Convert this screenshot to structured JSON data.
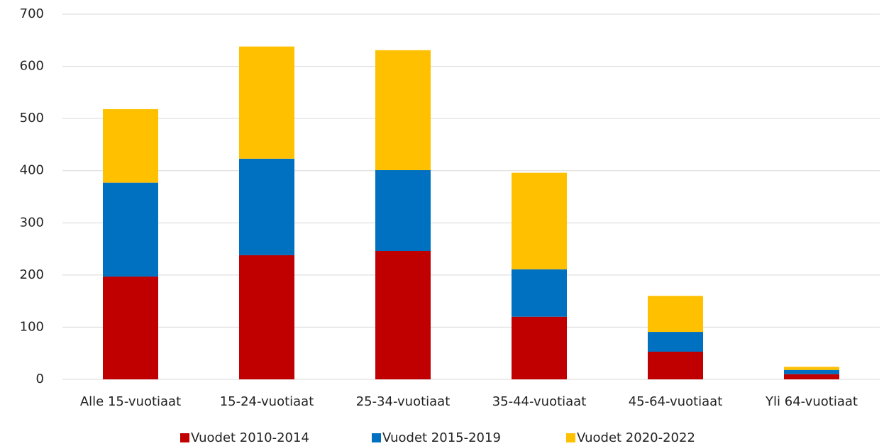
{
  "chart_data": {
    "type": "bar",
    "stacked": true,
    "categories": [
      "Alle 15-vuotiaat",
      "15-24-vuotiaat",
      "25-34-vuotiaat",
      "35-44-vuotiaat",
      "45-64-vuotiaat",
      "Yli 64-vuotiaat"
    ],
    "series": [
      {
        "name": "Vuodet 2010-2014",
        "color": "#c00000",
        "values": [
          197,
          238,
          246,
          120,
          53,
          10
        ]
      },
      {
        "name": "Vuodet 2015-2019",
        "color": "#0070c0",
        "values": [
          180,
          185,
          155,
          91,
          38,
          8
        ]
      },
      {
        "name": "Vuodet 2020-2022",
        "color": "#ffc000",
        "values": [
          141,
          215,
          230,
          185,
          69,
          6
        ]
      }
    ],
    "ylim": [
      0,
      700
    ],
    "yticks": [
      0,
      100,
      200,
      300,
      400,
      500,
      600,
      700
    ],
    "grid": true,
    "legend": "bottom"
  }
}
